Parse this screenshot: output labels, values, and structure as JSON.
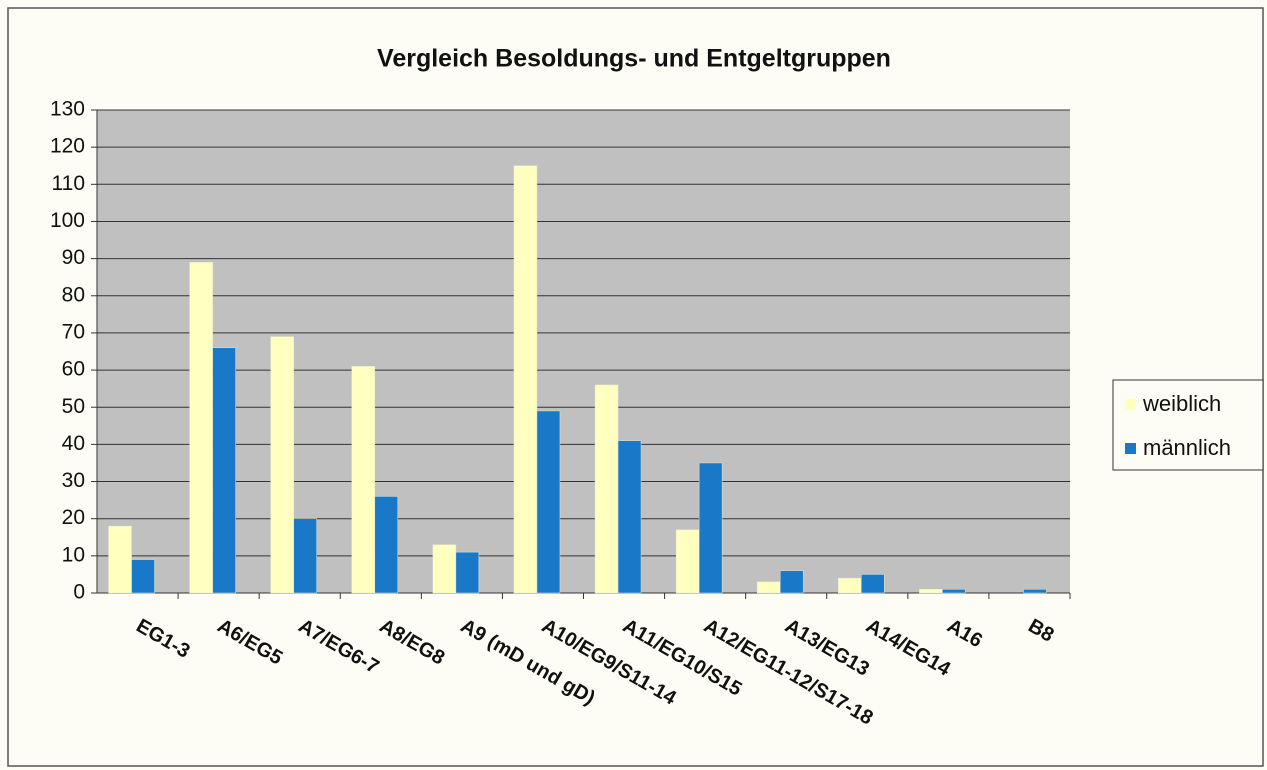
{
  "chart_data": {
    "type": "bar",
    "title": "Vergleich Besoldungs- und Entgeltgruppen",
    "categories": [
      "EG1-3",
      "A6/EG5",
      "A7/EG6-7",
      "A8/EG8",
      "A9 (mD und gD)",
      "A10/EG9/S11-14",
      "A11/EG10/S15",
      "A12/EG11-12/S17-18",
      "A13/EG13",
      "A14/EG14",
      "A16",
      "B8"
    ],
    "series": [
      {
        "name": "weiblich",
        "color": "#ffffc0",
        "values": [
          18,
          89,
          69,
          61,
          13,
          115,
          56,
          17,
          3,
          4,
          1,
          0
        ]
      },
      {
        "name": "männlich",
        "color": "#1a78c8",
        "values": [
          9,
          66,
          20,
          26,
          11,
          49,
          41,
          35,
          6,
          5,
          1,
          1
        ]
      }
    ],
    "ylim": [
      0,
      130
    ],
    "yticks": [
      0,
      10,
      20,
      30,
      40,
      50,
      60,
      70,
      80,
      90,
      100,
      110,
      120,
      130
    ],
    "grid": true,
    "legend": "right"
  }
}
